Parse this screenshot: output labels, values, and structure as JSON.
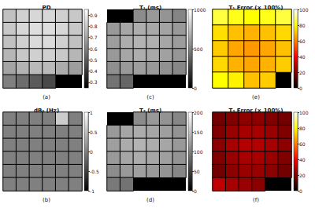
{
  "chart_data": [
    {
      "type": "heatmap",
      "title": "PD",
      "annotation": "(a)",
      "color": "gray",
      "tick_labels": false,
      "clim": [
        0.25,
        0.95
      ],
      "cticks": [
        0.3,
        0.4,
        0.5,
        0.6,
        0.7,
        0.8,
        0.9
      ],
      "cells": [
        [
          0.78,
          0.82,
          0.84,
          0.84,
          0.82,
          0.8
        ],
        [
          0.8,
          0.84,
          0.86,
          0.86,
          0.84,
          0.8
        ],
        [
          0.78,
          0.82,
          0.85,
          0.85,
          0.82,
          0.78
        ],
        [
          0.75,
          0.8,
          0.82,
          0.82,
          0.8,
          0.75
        ],
        [
          0.7,
          0.74,
          0.76,
          0.76,
          0.72,
          0.68
        ],
        [
          0.6,
          0.55,
          0.5,
          0.45,
          null,
          null
        ]
      ]
    },
    {
      "type": "heatmap",
      "title": "dB₀ (Hz)",
      "annotation": "(b)",
      "color": "gray",
      "tick_labels": false,
      "clim": [
        -1,
        1
      ],
      "cticks": [
        -1,
        -0.5,
        0,
        0.5,
        1
      ],
      "cells": [
        [
          0,
          0,
          0,
          0,
          0.6,
          0
        ],
        [
          0,
          0,
          0,
          0,
          0,
          0
        ],
        [
          0,
          0,
          0,
          0,
          0,
          0
        ],
        [
          0,
          0,
          0,
          0,
          0,
          0
        ],
        [
          0,
          0,
          0,
          0,
          0,
          0
        ],
        [
          0,
          0,
          0,
          0,
          0,
          0
        ]
      ]
    },
    {
      "type": "heatmap",
      "title": "T₁ (ms)",
      "annotation": "(c)",
      "color": "gray",
      "tick_labels": false,
      "clim": [
        0,
        1000
      ],
      "cticks": [
        0,
        500,
        1000
      ],
      "cells": [
        [
          null,
          null,
          550,
          600,
          580,
          520
        ],
        [
          600,
          650,
          680,
          660,
          640,
          600
        ],
        [
          620,
          680,
          700,
          690,
          650,
          610
        ],
        [
          600,
          650,
          680,
          660,
          630,
          590
        ],
        [
          560,
          600,
          620,
          600,
          570,
          530
        ],
        [
          450,
          400,
          null,
          null,
          null,
          null
        ]
      ]
    },
    {
      "type": "heatmap",
      "title": "T₂ (ms)",
      "annotation": "(d)",
      "color": "gray",
      "tick_labels": false,
      "clim": [
        0,
        200
      ],
      "cticks": [
        0,
        50,
        100,
        150,
        200
      ],
      "cells": [
        [
          null,
          null,
          110,
          120,
          115,
          105
        ],
        [
          120,
          130,
          135,
          130,
          125,
          115
        ],
        [
          125,
          135,
          140,
          135,
          130,
          120
        ],
        [
          120,
          130,
          135,
          130,
          125,
          115
        ],
        [
          110,
          120,
          125,
          120,
          115,
          105
        ],
        [
          95,
          90,
          null,
          null,
          null,
          null
        ]
      ]
    },
    {
      "type": "heatmap",
      "title": "T₁ Error (× 100%)",
      "annotation": "(e)",
      "color": "hot",
      "tick_labels": false,
      "clim": [
        0,
        100
      ],
      "cticks": [
        0,
        20,
        40,
        60,
        80,
        100
      ],
      "cells": [
        [
          85,
          82,
          80,
          82,
          85
        ],
        [
          75,
          70,
          68,
          70,
          74
        ],
        [
          72,
          66,
          64,
          66,
          70
        ],
        [
          74,
          68,
          66,
          68,
          72
        ],
        [
          80,
          78,
          70,
          72,
          null
        ]
      ]
    },
    {
      "type": "heatmap",
      "title": "T₂ Error (× 100%)",
      "annotation": "(f)",
      "color": "hot",
      "tick_labels": false,
      "clim": [
        0,
        100
      ],
      "cticks": [
        0,
        20,
        40,
        60,
        80,
        100
      ],
      "cells": [
        [
          18,
          20,
          22,
          22,
          20,
          18
        ],
        [
          20,
          24,
          26,
          26,
          24,
          20
        ],
        [
          22,
          26,
          28,
          28,
          26,
          22
        ],
        [
          20,
          24,
          26,
          26,
          24,
          20
        ],
        [
          18,
          22,
          24,
          24,
          22,
          18
        ],
        [
          30,
          26,
          24,
          22,
          null,
          null
        ]
      ]
    }
  ]
}
